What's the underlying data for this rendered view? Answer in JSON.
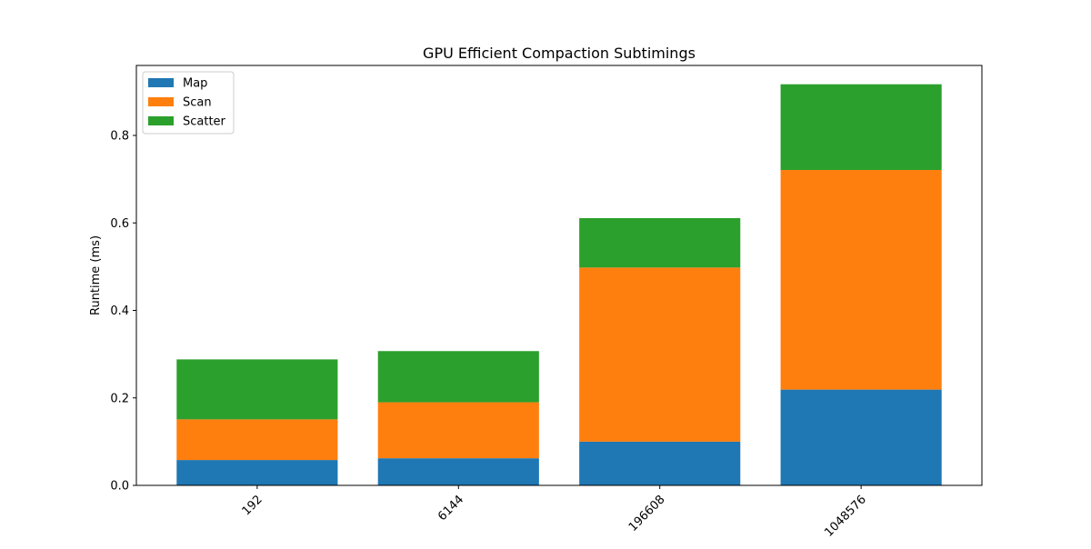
{
  "chart_data": {
    "type": "bar",
    "stacked": true,
    "title": "GPU Efficient Compaction Subtimings",
    "xlabel": "",
    "ylabel": "Runtime (ms)",
    "categories": [
      "192",
      "6144",
      "196608",
      "1048576"
    ],
    "series": [
      {
        "name": "Map",
        "color": "#1f77b4",
        "values": [
          0.058,
          0.062,
          0.1,
          0.219
        ]
      },
      {
        "name": "Scan",
        "color": "#ff7f0e",
        "values": [
          0.093,
          0.128,
          0.398,
          0.502
        ]
      },
      {
        "name": "Scatter",
        "color": "#2ca02c",
        "values": [
          0.137,
          0.117,
          0.113,
          0.196
        ]
      }
    ],
    "ylim": [
      0,
      0.96
    ],
    "yticks": [
      0.0,
      0.2,
      0.4,
      0.6,
      0.8
    ],
    "ytick_labels": [
      "0.0",
      "0.2",
      "0.4",
      "0.6",
      "0.8"
    ],
    "grid": false,
    "legend_position": "top-left",
    "xtick_rotation": "45 degrees"
  }
}
